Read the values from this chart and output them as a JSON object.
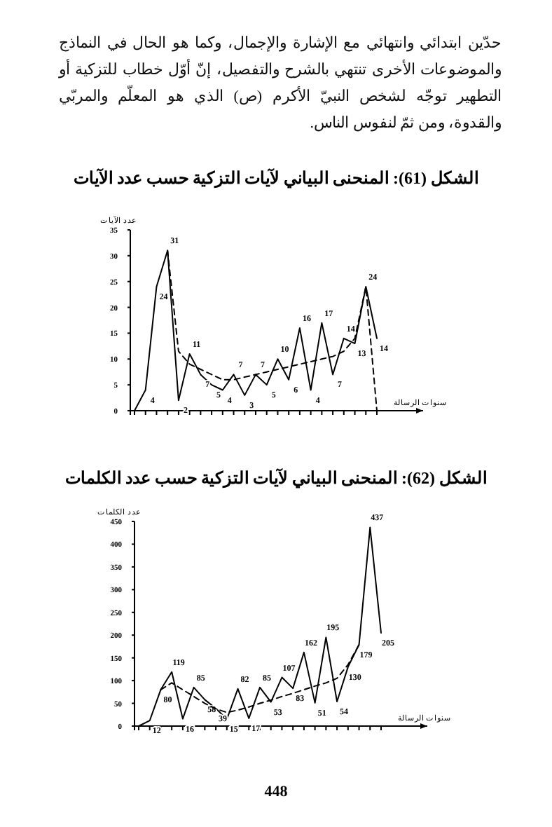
{
  "chart_data": [
    {
      "type": "line",
      "title": "الشكل (61): المنحنى البياني لآيات التزكية حسب عدد الآيات",
      "ylabel": "عدد الآيات",
      "xlabel": "سنوات الرسالة",
      "annotations": [
        "حدّين ابتدائي وانتهائي مع الإشارة والإجمال، وكما هو الحال في النماذج والموضوعات الأخرى تنتهي بالشرح والتفصيل، إنّ أوّل خطاب للتزكية أو التطهير توجّه لشخص النبيّ الأكرم (ص) الذي هو المعلّم والمربّي والقدوة، ومن ثمّ لنفوس الناس."
      ],
      "categories": [
        null,
        null,
        null,
        null,
        null,
        null,
        null,
        null,
        null,
        null,
        null,
        null,
        null,
        null,
        null,
        null,
        null,
        null,
        null,
        null,
        null,
        null,
        null
      ],
      "series": [
        {
          "color": "#000000",
          "line_style": "solid",
          "values": [
            0,
            4,
            24,
            31,
            2,
            11,
            7,
            5,
            4,
            7,
            3,
            7,
            5,
            10,
            6,
            16,
            4,
            17,
            7,
            14,
            13,
            24,
            14
          ],
          "value_labels": [
            null,
            "4",
            "24",
            "31",
            "2",
            "11",
            "7",
            "5",
            "4",
            "7",
            "3",
            "7",
            "5",
            "10",
            "6",
            "16",
            "4",
            "17",
            "7",
            "14",
            "13",
            "24",
            "14"
          ]
        },
        {
          "color": "#000000",
          "line_style": "dashed",
          "values": [
            null,
            null,
            null,
            31,
            11.5,
            9,
            8,
            7,
            6,
            6,
            6.5,
            7,
            7.5,
            8,
            8.5,
            9,
            9.5,
            10,
            10.5,
            11.5,
            14,
            24,
            0
          ]
        }
      ],
      "ylim": [
        0,
        35
      ],
      "yticks": [
        0,
        5,
        10,
        15,
        20,
        25,
        30,
        35
      ],
      "grid": false
    },
    {
      "type": "line",
      "title": "الشكل (62): المنحنى البياني لآيات التزكية حسب عدد الكلمات",
      "ylabel": "عدد الكلمات",
      "xlabel": "سنوات الرسالة",
      "annotations": [
        "448"
      ],
      "categories": [
        null,
        null,
        null,
        null,
        null,
        null,
        null,
        null,
        null,
        null,
        null,
        null,
        null,
        null,
        null,
        null,
        null,
        null,
        null,
        null,
        null,
        null,
        null
      ],
      "series": [
        {
          "color": "#000000",
          "line_style": "solid",
          "values": [
            0,
            12,
            80,
            119,
            16,
            85,
            58,
            39,
            15,
            82,
            17,
            85,
            53,
            107,
            83,
            162,
            51,
            195,
            54,
            130,
            179,
            437,
            205
          ],
          "value_labels": [
            null,
            "12",
            "80",
            "119",
            "16",
            "85",
            "58",
            "39",
            "15",
            "82",
            "17",
            "85",
            "53",
            "107",
            "83",
            "162",
            "51",
            "195",
            "54",
            "130",
            "179",
            "437",
            "205"
          ]
        },
        {
          "color": "#000000",
          "line_style": "dashed",
          "values": [
            null,
            null,
            80,
            95,
            80,
            65,
            50,
            38,
            30,
            35,
            42,
            50,
            57,
            65,
            72,
            80,
            88,
            95,
            105,
            135,
            179,
            null,
            null
          ]
        }
      ],
      "ylim": [
        0,
        450
      ],
      "yticks": [
        0,
        50,
        100,
        150,
        200,
        250,
        300,
        350,
        400,
        450
      ],
      "grid": false
    }
  ]
}
